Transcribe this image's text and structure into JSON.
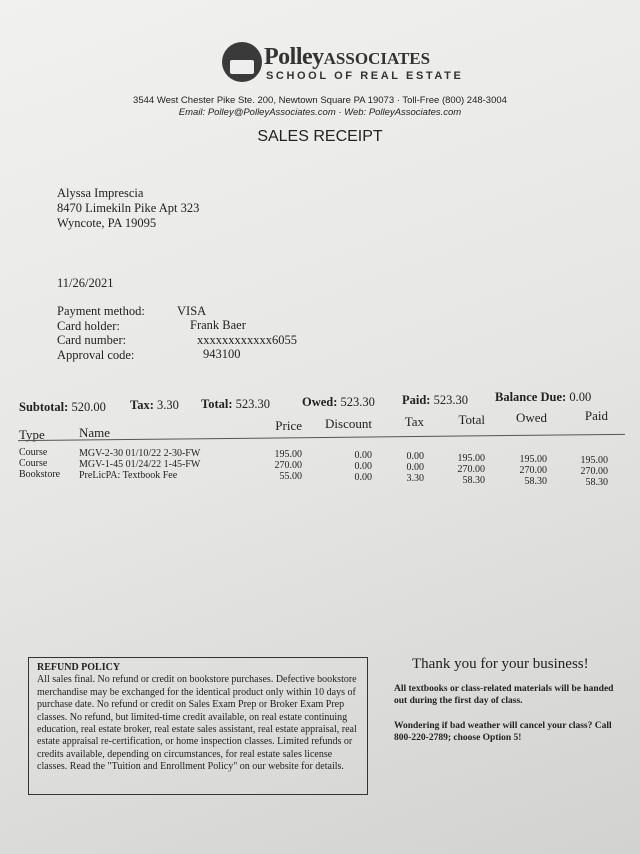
{
  "header": {
    "brand": "Polley",
    "brand_suffix": "ASSOCIATES",
    "school": "SCHOOL OF REAL ESTATE",
    "address": "3544 West Chester Pike Ste. 200, Newtown Square PA 19073 · Toll-Free (800) 248-3004",
    "contact": "Email: Polley@PolleyAssociates.com · Web: PolleyAssociates.com",
    "title": "SALES RECEIPT"
  },
  "customer": {
    "name": "Alyssa Imprescia",
    "street": "8470 Limekiln Pike Apt 323",
    "city": "Wyncote, PA 19095"
  },
  "date": "11/26/2021",
  "payment": {
    "method_label": "Payment method:",
    "method": "VISA",
    "holder_label": "Card holder:",
    "holder": "Frank Baer",
    "number_label": "Card number:",
    "number": "xxxxxxxxxxxx6055",
    "approval_label": "Approval code:",
    "approval": "943100"
  },
  "summary": {
    "subtotal_label": "Subtotal:",
    "subtotal": "520.00",
    "tax_label": "Tax:",
    "tax": "3.30",
    "total_label": "Total:",
    "total": "523.30",
    "owed_label": "Owed:",
    "owed": "523.30",
    "paid_label": "Paid:",
    "paid": "523.30",
    "balance_label": "Balance Due:",
    "balance": "0.00"
  },
  "table": {
    "headers": [
      "Type",
      "Name",
      "Price",
      "Discount",
      "Tax",
      "Total",
      "Owed",
      "Paid"
    ],
    "rows": [
      [
        "Course",
        "MGV-2-30 01/10/22 2-30-FW",
        "195.00",
        "0.00",
        "0.00",
        "195.00",
        "195.00",
        "195.00"
      ],
      [
        "Course",
        "MGV-1-45 01/24/22 1-45-FW",
        "270.00",
        "0.00",
        "0.00",
        "270.00",
        "270.00",
        "270.00"
      ],
      [
        "Bookstore",
        "PreLicPA: Textbook Fee",
        "55.00",
        "0.00",
        "3.30",
        "58.30",
        "58.30",
        "58.30"
      ]
    ]
  },
  "refund": {
    "title": "REFUND POLICY",
    "body": "All sales final. No refund or credit on bookstore purchases. Defective bookstore merchandise may be exchanged for the identical product only within 10 days of purchase date. No refund or credit on Sales Exam Prep or Broker Exam Prep classes. No refund, but limited-time credit available, on real estate continuing education, real estate broker, real estate sales assistant, real estate appraisal, real estate appraisal re-certification, or home inspection classes. Limited refunds or credits available, depending on circumstances, for real estate sales license classes. Read the \"Tuition and Enrollment Policy\" on our website for details."
  },
  "thanks": {
    "title": "Thank you for your business!",
    "note1": "All textbooks or class-related materials will be handed out during the first day of class.",
    "note2": "Wondering if bad weather will cancel your class? Call 800-220-2789; choose Option 5!"
  }
}
